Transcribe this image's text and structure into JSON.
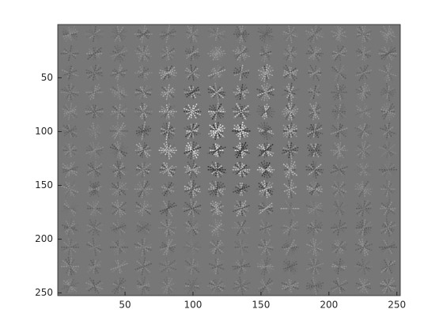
{
  "chart_data": {
    "type": "image",
    "xlim": [
      0.5,
      252.5
    ],
    "xticks": [
      50,
      100,
      150,
      200,
      250
    ],
    "ylim": [
      0.5,
      252.5
    ],
    "yticks": [
      50,
      100,
      150,
      200,
      250
    ],
    "y_reversed": true,
    "colormap": "gray"
  }
}
